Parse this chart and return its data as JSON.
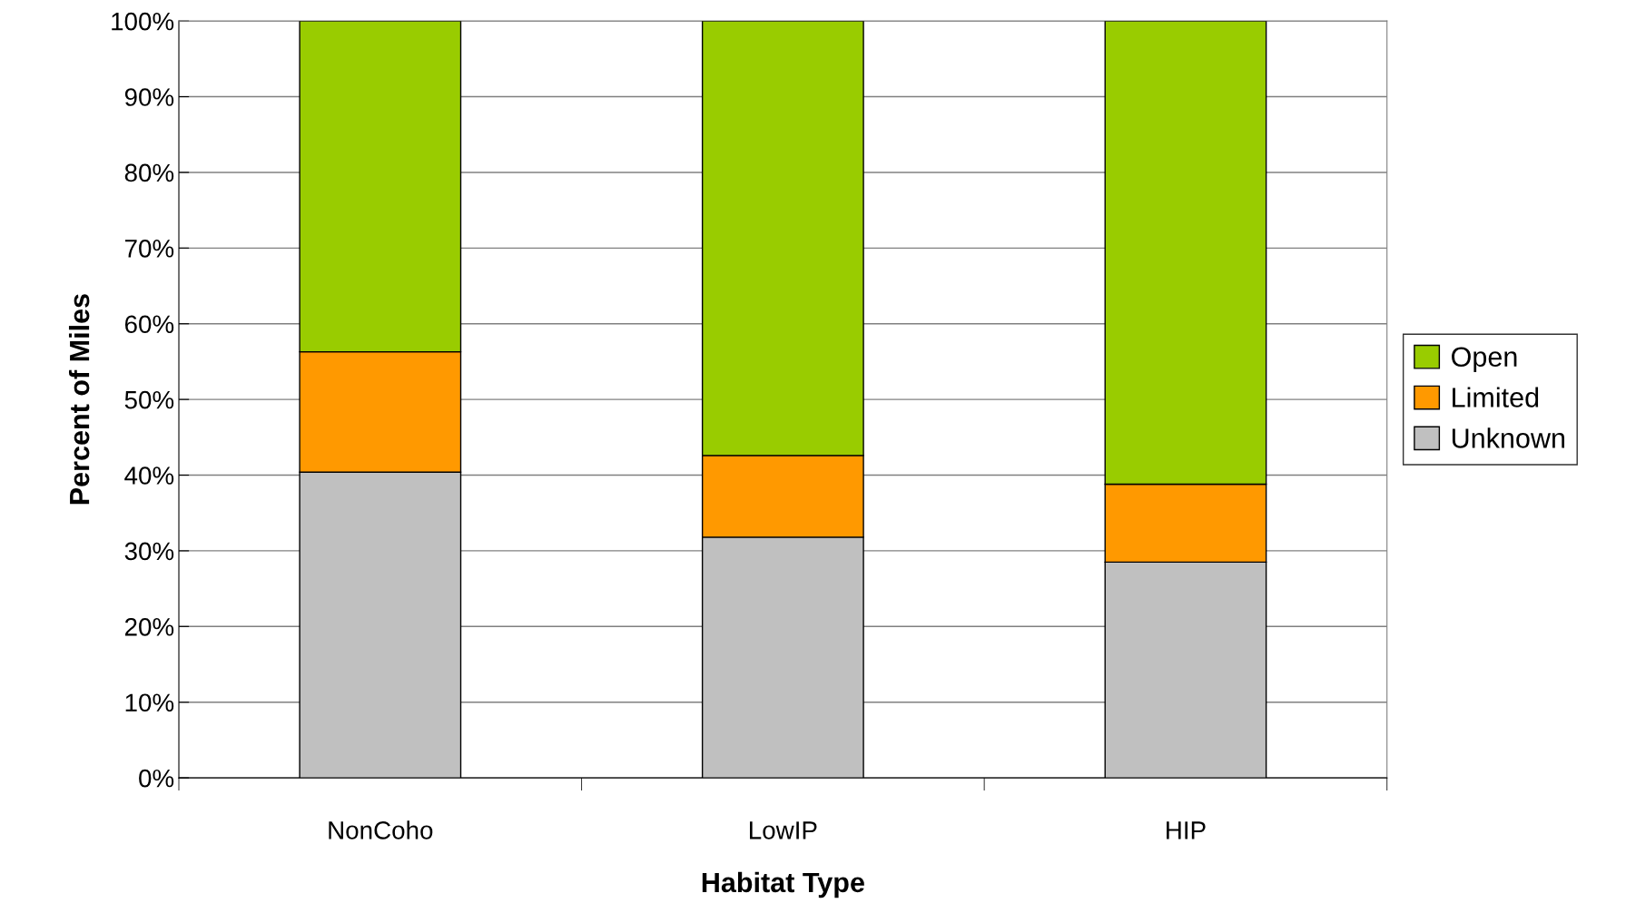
{
  "chart_data": {
    "type": "bar",
    "stacked": true,
    "xlabel": "Habitat Type",
    "ylabel": "Percent of Miles",
    "categories": [
      "NonCoho",
      "LowIP",
      "HIP"
    ],
    "series": [
      {
        "name": "Unknown",
        "color": "#c0c0c0",
        "values": [
          40.4,
          31.8,
          28.5
        ]
      },
      {
        "name": "Limited",
        "color": "#ff9900",
        "values": [
          15.9,
          10.8,
          10.3
        ]
      },
      {
        "name": "Open",
        "color": "#99cc00",
        "values": [
          43.7,
          57.4,
          61.2
        ]
      }
    ],
    "ylim": [
      0,
      100
    ],
    "yticks": [
      {
        "value": 0,
        "label": "0%"
      },
      {
        "value": 10,
        "label": "10%"
      },
      {
        "value": 20,
        "label": "20%"
      },
      {
        "value": 30,
        "label": "30%"
      },
      {
        "value": 40,
        "label": "40%"
      },
      {
        "value": 50,
        "label": "50%"
      },
      {
        "value": 60,
        "label": "60%"
      },
      {
        "value": 70,
        "label": "70%"
      },
      {
        "value": 80,
        "label": "80%"
      },
      {
        "value": 90,
        "label": "90%"
      },
      {
        "value": 100,
        "label": "100%"
      }
    ],
    "grid": "y",
    "legend": "right"
  }
}
